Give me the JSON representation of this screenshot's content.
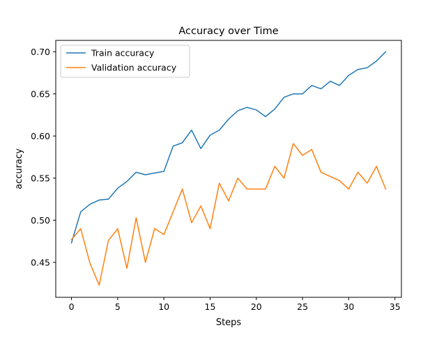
{
  "chart_data": {
    "type": "line",
    "title": "Accuracy over Time",
    "xlabel": "Steps",
    "ylabel": "accuracy",
    "xlim": [
      -1.7,
      35.7
    ],
    "ylim": [
      0.4085,
      0.7135
    ],
    "x_ticks": [
      0,
      5,
      10,
      15,
      20,
      25,
      30,
      35
    ],
    "y_ticks": [
      0.45,
      0.5,
      0.55,
      0.6,
      0.65,
      0.7
    ],
    "grid": false,
    "legend_position": "upper-left",
    "x": [
      0,
      1,
      2,
      3,
      4,
      5,
      6,
      7,
      8,
      9,
      10,
      11,
      12,
      13,
      14,
      15,
      16,
      17,
      18,
      19,
      20,
      21,
      22,
      23,
      24,
      25,
      26,
      27,
      28,
      29,
      30,
      31,
      32,
      33,
      34
    ],
    "series": [
      {
        "name": "Train accuracy",
        "color": "#1f77b4",
        "values": [
          0.473,
          0.51,
          0.519,
          0.524,
          0.525,
          0.538,
          0.546,
          0.557,
          0.554,
          0.556,
          0.558,
          0.588,
          0.592,
          0.607,
          0.585,
          0.601,
          0.607,
          0.62,
          0.63,
          0.634,
          0.631,
          0.623,
          0.632,
          0.646,
          0.65,
          0.65,
          0.66,
          0.656,
          0.665,
          0.66,
          0.672,
          0.679,
          0.681,
          0.689,
          0.7
        ]
      },
      {
        "name": "Validation accuracy",
        "color": "#ff7f0e",
        "values": [
          0.477,
          0.49,
          0.449,
          0.423,
          0.476,
          0.49,
          0.443,
          0.503,
          0.45,
          0.49,
          0.483,
          0.51,
          0.537,
          0.497,
          0.517,
          0.49,
          0.544,
          0.523,
          0.55,
          0.537,
          0.537,
          0.537,
          0.564,
          0.55,
          0.591,
          0.577,
          0.584,
          0.557,
          0.552,
          0.547,
          0.537,
          0.557,
          0.544,
          0.564,
          0.537
        ]
      }
    ]
  }
}
